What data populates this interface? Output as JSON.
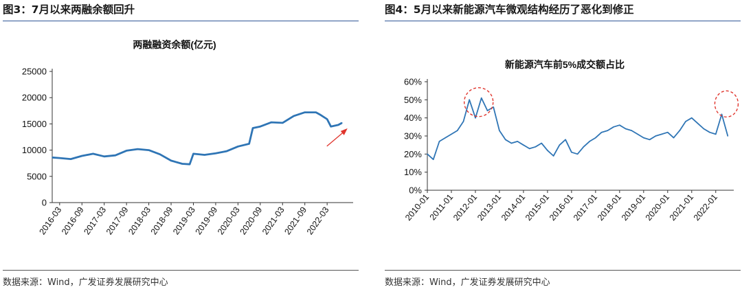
{
  "figures": [
    {
      "id": "fig3",
      "figure_title": "图3：7月以来两融余额回升",
      "source": "数据来源：Wind，广发证券发展研究中心"
    },
    {
      "id": "fig4",
      "figure_title": "图4：5月以来新能源汽车微观结构经历了恶化到修正",
      "source": "数据来源：Wind，广发证券发展研究中心"
    }
  ],
  "colors": {
    "line": "#2f75b5",
    "accent_red": "#e0342c",
    "rule": "#2f5597"
  },
  "chart_data": [
    {
      "type": "line",
      "title": "两融融资余额(亿元)",
      "xlabel": "",
      "ylabel": "",
      "ylim": [
        0,
        25000
      ],
      "yticks": [
        "0",
        "5000",
        "10000",
        "15000",
        "20000",
        "25000"
      ],
      "xticks": [
        "2016-03",
        "2016-09",
        "2017-03",
        "2017-09",
        "2018-03",
        "2018-09",
        "2019-03",
        "2019-09",
        "2020-03",
        "2020-09",
        "2021-03",
        "2021-09",
        "2022-03"
      ],
      "grid": false,
      "legend": "none",
      "annotation": "red arrow pointing up-right at the recent rebound (2022-07)",
      "series": [
        {
          "x": [
            "2016-01",
            "2016-03",
            "2016-06",
            "2016-09",
            "2016-12",
            "2017-03",
            "2017-06",
            "2017-09",
            "2017-12",
            "2018-03",
            "2018-06",
            "2018-09",
            "2018-12",
            "2019-02",
            "2019-03",
            "2019-06",
            "2019-09",
            "2019-12",
            "2020-03",
            "2020-06",
            "2020-07",
            "2020-09",
            "2020-12",
            "2021-03",
            "2021-06",
            "2021-09",
            "2021-12",
            "2022-01",
            "2022-03",
            "2022-04",
            "2022-06",
            "2022-07"
          ],
          "values": [
            8600,
            8500,
            8300,
            8900,
            9300,
            8800,
            9000,
            9900,
            10200,
            10000,
            9200,
            8000,
            7400,
            7300,
            9300,
            9100,
            9400,
            9800,
            10700,
            11200,
            14200,
            14500,
            15300,
            15200,
            16500,
            17200,
            17200,
            16800,
            15900,
            14500,
            14800,
            15200
          ]
        }
      ]
    },
    {
      "type": "line",
      "title": "新能源汽车前5%成交额占比",
      "xlabel": "",
      "ylabel": "",
      "ylim": [
        0,
        60
      ],
      "yticks": [
        "0%",
        "10%",
        "20%",
        "30%",
        "40%",
        "50%",
        "60%"
      ],
      "xticks": [
        "2010-01",
        "2011-01",
        "2012-01",
        "2013-01",
        "2014-01",
        "2015-01",
        "2016-01",
        "2017-01",
        "2018-01",
        "2019-01",
        "2020-01",
        "2021-01",
        "2022-01"
      ],
      "grid": false,
      "legend": "none",
      "annotation": "red dashed circles around the 2012 peak and the 2022 peak",
      "highlight_circles_at": [
        "2012-04",
        "2022-05"
      ],
      "series": [
        {
          "x": [
            "2010-01",
            "2010-04",
            "2010-07",
            "2010-10",
            "2011-01",
            "2011-04",
            "2011-07",
            "2011-10",
            "2012-01",
            "2012-04",
            "2012-07",
            "2012-10",
            "2013-01",
            "2013-04",
            "2013-07",
            "2013-10",
            "2014-01",
            "2014-04",
            "2014-07",
            "2014-10",
            "2015-01",
            "2015-04",
            "2015-07",
            "2015-10",
            "2016-01",
            "2016-04",
            "2016-07",
            "2016-10",
            "2017-01",
            "2017-04",
            "2017-07",
            "2017-10",
            "2018-01",
            "2018-04",
            "2018-07",
            "2018-10",
            "2019-01",
            "2019-04",
            "2019-07",
            "2019-10",
            "2020-01",
            "2020-04",
            "2020-07",
            "2020-10",
            "2021-01",
            "2021-04",
            "2021-07",
            "2021-10",
            "2022-01",
            "2022-04",
            "2022-07"
          ],
          "values": [
            20,
            17,
            27,
            29,
            31,
            33,
            38,
            50,
            40,
            51,
            44,
            46,
            33,
            28,
            26,
            27,
            25,
            23,
            24,
            26,
            22,
            19,
            25,
            28,
            21,
            20,
            24,
            27,
            29,
            32,
            33,
            35,
            36,
            34,
            33,
            31,
            29,
            28,
            30,
            31,
            32,
            29,
            33,
            38,
            40,
            37,
            34,
            32,
            31,
            42,
            30
          ]
        }
      ]
    }
  ]
}
